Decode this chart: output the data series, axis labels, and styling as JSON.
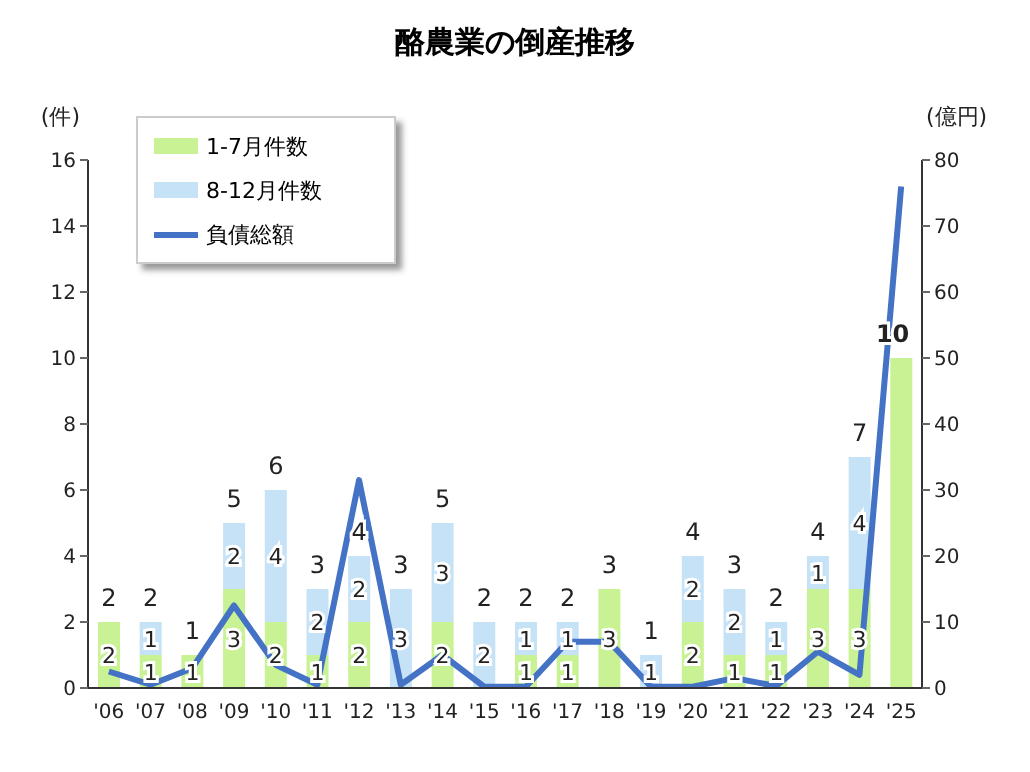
{
  "chart_data": {
    "type": "bar",
    "title": "酪農業の倒産推移",
    "ylabel": "(件)",
    "y2label": "(億円)",
    "categories": [
      "'06",
      "'07",
      "'08",
      "'09",
      "'10",
      "'11",
      "'12",
      "'13",
      "'14",
      "'15",
      "'16",
      "'17",
      "'18",
      "'19",
      "'20",
      "'21",
      "'22",
      "'23",
      "'24",
      "'25"
    ],
    "stacked": true,
    "legend": "top left",
    "ylim": [
      0,
      16
    ],
    "yticks": [
      0,
      2,
      4,
      6,
      8,
      10,
      12,
      14,
      16
    ],
    "y2lim": [
      0,
      80
    ],
    "y2ticks": [
      0,
      10,
      20,
      30,
      40,
      50,
      60,
      70,
      80
    ],
    "totals": [
      "2",
      "2",
      "1",
      "5",
      "6",
      "3",
      "4",
      "3",
      "5",
      "2",
      "2",
      "2",
      "3",
      "1",
      "4",
      "3",
      "2",
      "4",
      "7",
      "10"
    ],
    "series": [
      {
        "name": "1-7月件数",
        "color": "#c8f294",
        "values": [
          2,
          1,
          1,
          3,
          2,
          1,
          2,
          0,
          2,
          0,
          1,
          1,
          3,
          0,
          2,
          1,
          1,
          3,
          3,
          10
        ],
        "value_labels": [
          "2",
          "1",
          "1",
          "3",
          "2",
          "1",
          "2",
          null,
          "2",
          null,
          "1",
          "1",
          "3",
          null,
          "2",
          "1",
          "1",
          "3",
          "3",
          null
        ]
      },
      {
        "name": "8-12月件数",
        "color": "#c6e2f7",
        "values": [
          0,
          1,
          0,
          2,
          4,
          2,
          2,
          3,
          3,
          2,
          1,
          1,
          0,
          1,
          2,
          2,
          1,
          1,
          4,
          0
        ],
        "value_labels": [
          null,
          "1",
          null,
          "2",
          "4",
          "2",
          "2",
          "3",
          "3",
          "2",
          "1",
          "1",
          null,
          "1",
          "2",
          "2",
          "1",
          "1",
          "4",
          null
        ]
      },
      {
        "name": "負債総額",
        "type": "line",
        "axis": "y2",
        "color": "#4472c4",
        "values": [
          2.5,
          0.5,
          3,
          12.5,
          3.5,
          0.5,
          31.5,
          0.5,
          5,
          0.2,
          0.2,
          7,
          7,
          0.2,
          0.2,
          1.5,
          0.3,
          5.5,
          2,
          76
        ]
      }
    ]
  }
}
